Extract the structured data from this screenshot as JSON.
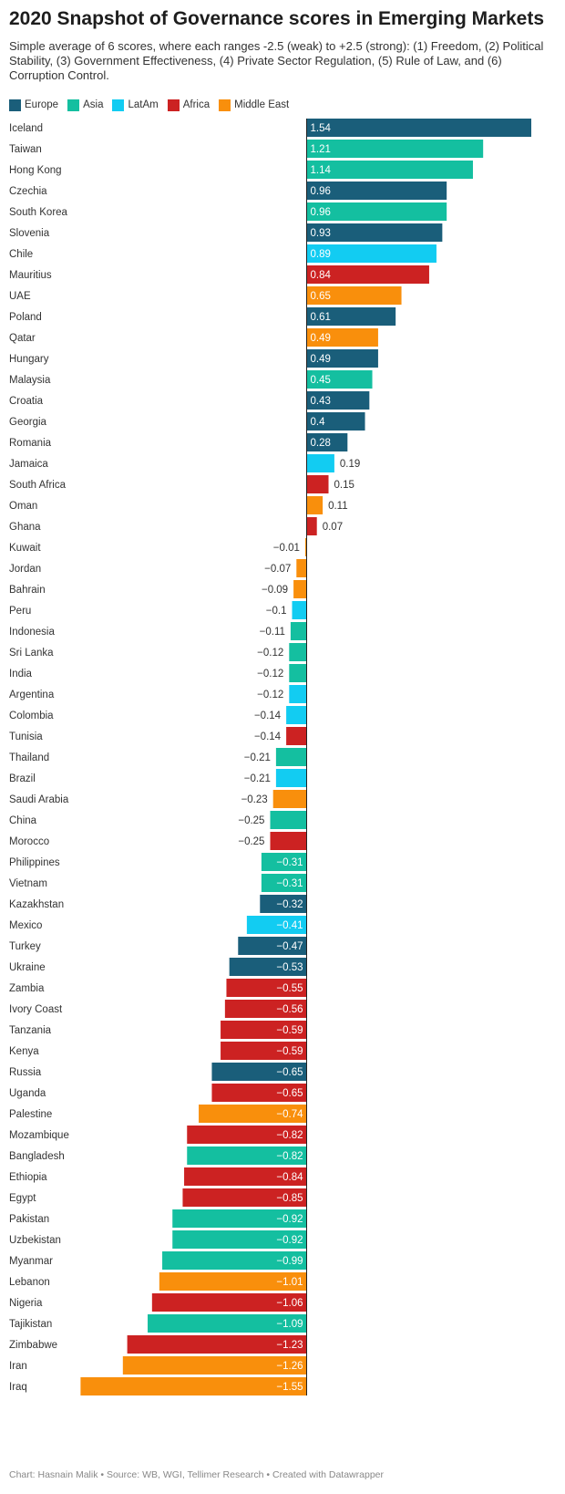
{
  "header": {
    "title": "2020 Snapshot of Governance scores in Emerging Markets",
    "subtitle": "Simple average of 6 scores, where each ranges -2.5 (weak) to +2.5 (strong): (1) Freedom, (2) Political Stability, (3) Government Effectiveness, (4) Private Sector Regulation, (5) Rule of Law, and (6) Corruption Control."
  },
  "legend": [
    {
      "label": "Europe",
      "color": "#1a5e7a"
    },
    {
      "label": "Asia",
      "color": "#14bfa0"
    },
    {
      "label": "LatAm",
      "color": "#12ccf2"
    },
    {
      "label": "Africa",
      "color": "#cc2222"
    },
    {
      "label": "Middle East",
      "color": "#f98f0c"
    }
  ],
  "footer": {
    "chart_by": "Chart: Hasnain Malik",
    "source": "Source: WB, WGI, Tellimer Research",
    "created": "Created with Datawrapper"
  },
  "chart_data": {
    "type": "bar",
    "orientation": "horizontal",
    "xlim": [
      -1.55,
      1.54
    ],
    "grid": false,
    "categories": [
      "Iceland",
      "Taiwan",
      "Hong Kong",
      "Czechia",
      "South Korea",
      "Slovenia",
      "Chile",
      "Mauritius",
      "UAE",
      "Poland",
      "Qatar",
      "Hungary",
      "Malaysia",
      "Croatia",
      "Georgia",
      "Romania",
      "Jamaica",
      "South Africa",
      "Oman",
      "Ghana",
      "Kuwait",
      "Jordan",
      "Bahrain",
      "Peru",
      "Indonesia",
      "Sri Lanka",
      "India",
      "Argentina",
      "Colombia",
      "Tunisia",
      "Thailand",
      "Brazil",
      "Saudi Arabia",
      "China",
      "Morocco",
      "Philippines",
      "Vietnam",
      "Kazakhstan",
      "Mexico",
      "Turkey",
      "Ukraine",
      "Zambia",
      "Ivory Coast",
      "Tanzania",
      "Kenya",
      "Russia",
      "Uganda",
      "Palestine",
      "Mozambique",
      "Bangladesh",
      "Ethiopia",
      "Egypt",
      "Pakistan",
      "Uzbekistan",
      "Myanmar",
      "Lebanon",
      "Nigeria",
      "Tajikistan",
      "Zimbabwe",
      "Iran",
      "Iraq"
    ],
    "values": [
      1.54,
      1.21,
      1.14,
      0.96,
      0.96,
      0.93,
      0.89,
      0.84,
      0.65,
      0.61,
      0.49,
      0.49,
      0.45,
      0.43,
      0.4,
      0.28,
      0.19,
      0.15,
      0.11,
      0.07,
      -0.01,
      -0.07,
      -0.09,
      -0.1,
      -0.11,
      -0.12,
      -0.12,
      -0.12,
      -0.14,
      -0.14,
      -0.21,
      -0.21,
      -0.23,
      -0.25,
      -0.25,
      -0.31,
      -0.31,
      -0.32,
      -0.41,
      -0.47,
      -0.53,
      -0.55,
      -0.56,
      -0.59,
      -0.59,
      -0.65,
      -0.65,
      -0.74,
      -0.82,
      -0.82,
      -0.84,
      -0.85,
      -0.92,
      -0.92,
      -0.99,
      -1.01,
      -1.06,
      -1.09,
      -1.23,
      -1.26,
      -1.55
    ],
    "labels": [
      "1.54",
      "1.21",
      "1.14",
      "0.96",
      "0.96",
      "0.93",
      "0.89",
      "0.84",
      "0.65",
      "0.61",
      "0.49",
      "0.49",
      "0.45",
      "0.43",
      "0.4",
      "0.28",
      "0.19",
      "0.15",
      "0.11",
      "0.07",
      "−0.01",
      "−0.07",
      "−0.09",
      "−0.1",
      "−0.11",
      "−0.12",
      "−0.12",
      "−0.12",
      "−0.14",
      "−0.14",
      "−0.21",
      "−0.21",
      "−0.23",
      "−0.25",
      "−0.25",
      "−0.31",
      "−0.31",
      "−0.32",
      "−0.41",
      "−0.47",
      "−0.53",
      "−0.55",
      "−0.56",
      "−0.59",
      "−0.59",
      "−0.65",
      "−0.65",
      "−0.74",
      "−0.82",
      "−0.82",
      "−0.84",
      "−0.85",
      "−0.92",
      "−0.92",
      "−0.99",
      "−1.01",
      "−1.06",
      "−1.09",
      "−1.23",
      "−1.26",
      "−1.55"
    ],
    "regions": [
      "Europe",
      "Asia",
      "Asia",
      "Europe",
      "Asia",
      "Europe",
      "LatAm",
      "Africa",
      "Middle East",
      "Europe",
      "Middle East",
      "Europe",
      "Asia",
      "Europe",
      "Europe",
      "Europe",
      "LatAm",
      "Africa",
      "Middle East",
      "Africa",
      "Middle East",
      "Middle East",
      "Middle East",
      "LatAm",
      "Asia",
      "Asia",
      "Asia",
      "LatAm",
      "LatAm",
      "Africa",
      "Asia",
      "LatAm",
      "Middle East",
      "Asia",
      "Africa",
      "Asia",
      "Asia",
      "Europe",
      "LatAm",
      "Europe",
      "Europe",
      "Africa",
      "Africa",
      "Africa",
      "Africa",
      "Europe",
      "Africa",
      "Middle East",
      "Africa",
      "Asia",
      "Africa",
      "Africa",
      "Asia",
      "Asia",
      "Asia",
      "Middle East",
      "Africa",
      "Asia",
      "Africa",
      "Middle East",
      "Middle East"
    ]
  }
}
